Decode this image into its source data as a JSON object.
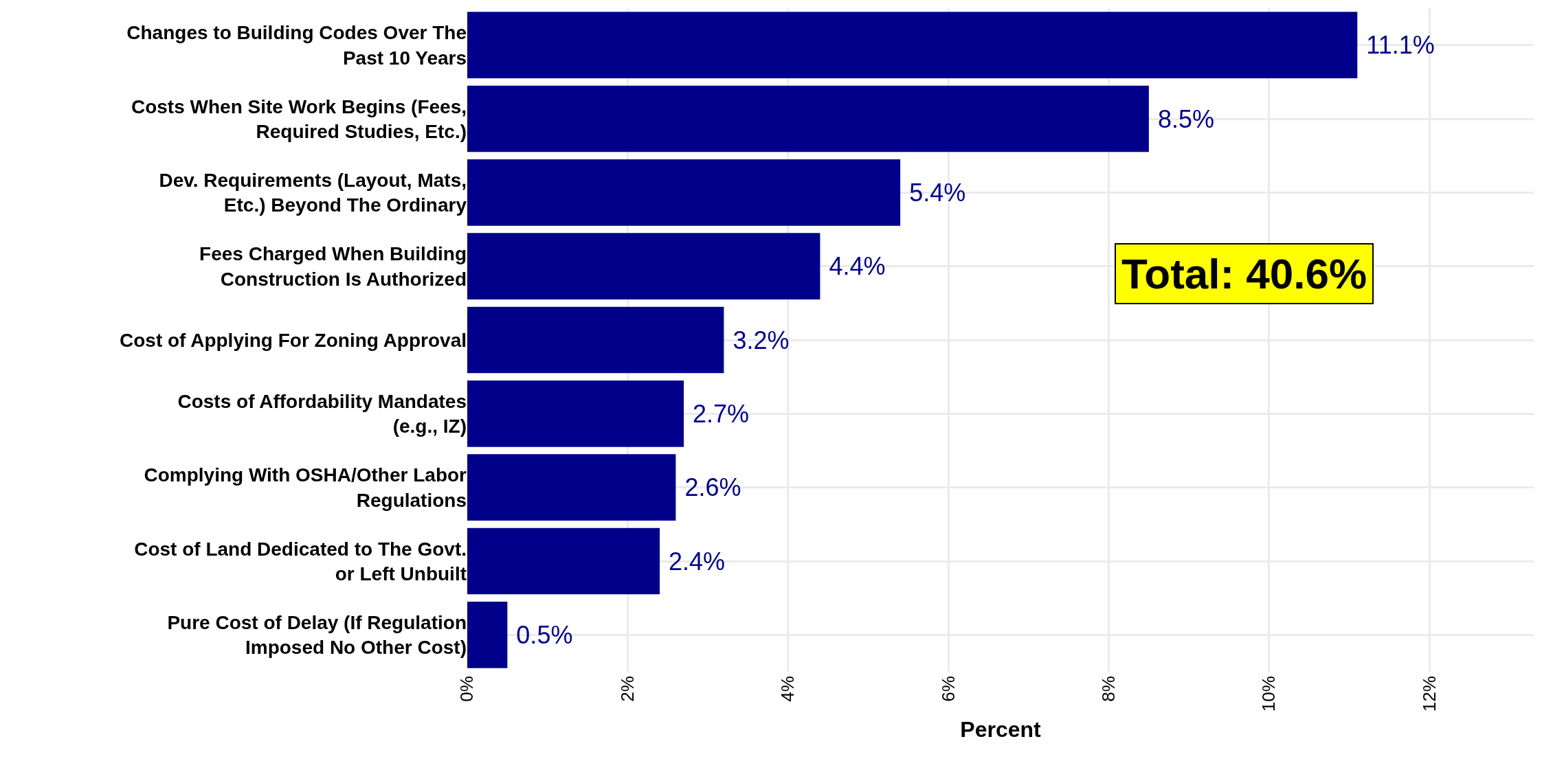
{
  "chart_data": {
    "type": "bar",
    "orientation": "horizontal",
    "categories": [
      "Changes to Building Codes Over The Past 10 Years",
      "Costs When Site Work Begins (Fees, Required Studies, Etc.)",
      "Dev. Requirements (Layout, Mats, Etc.) Beyond The Ordinary",
      "Fees Charged When Building Construction Is Authorized",
      "Cost of Applying For Zoning Approval",
      "Costs of Affordability Mandates (e.g., IZ)",
      "Complying With OSHA/Other Labor Regulations",
      "Cost of Land Dedicated to The Govt. or Left Unbuilt",
      "Pure Cost of Delay (If Regulation Imposed No Other Cost)"
    ],
    "values": [
      11.1,
      8.5,
      5.4,
      4.4,
      3.2,
      2.7,
      2.6,
      2.4,
      0.5
    ],
    "value_labels": [
      "11.1%",
      "8.5%",
      "5.4%",
      "4.4%",
      "3.2%",
      "2.7%",
      "2.6%",
      "2.4%",
      "0.5%"
    ],
    "color": "#00008b",
    "xlabel": "Percent",
    "xlim": [
      0,
      13.3
    ],
    "xticks": [
      {
        "value": 0,
        "label": "0%"
      },
      {
        "value": 2,
        "label": "2%"
      },
      {
        "value": 4,
        "label": "4%"
      },
      {
        "value": 6,
        "label": "6%"
      },
      {
        "value": 8,
        "label": "8%"
      },
      {
        "value": 10,
        "label": "10%"
      },
      {
        "value": 12,
        "label": "12%"
      }
    ],
    "grid": true,
    "annotations": [
      "Total: 40.6%"
    ]
  }
}
